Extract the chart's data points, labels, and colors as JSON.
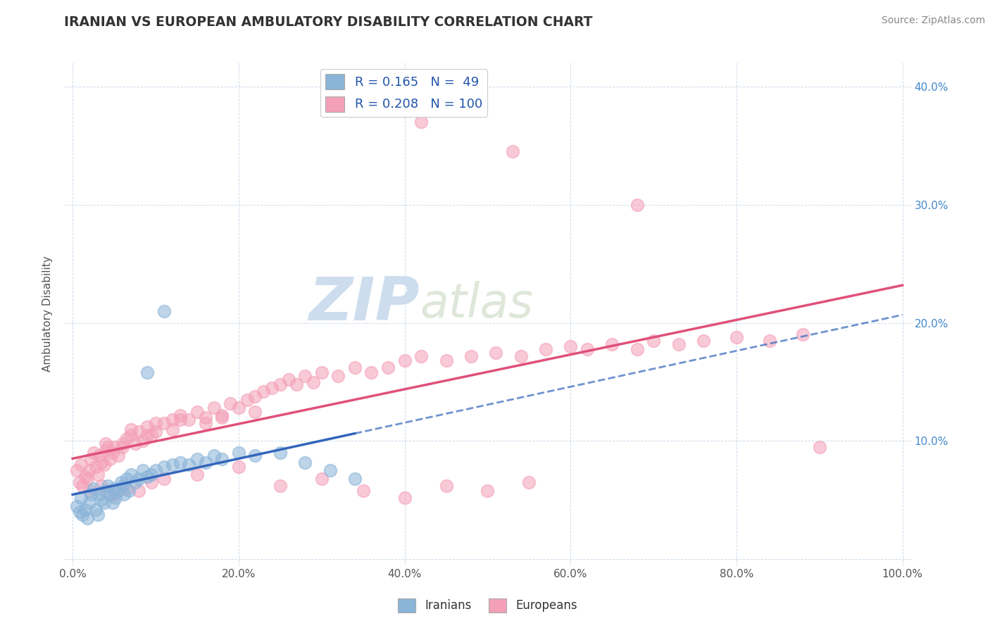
{
  "title": "IRANIAN VS EUROPEAN AMBULATORY DISABILITY CORRELATION CHART",
  "source": "Source: ZipAtlas.com",
  "ylabel": "Ambulatory Disability",
  "watermark_zip": "ZIP",
  "watermark_atlas": "atlas",
  "legend_iranian": {
    "R": 0.165,
    "N": 49
  },
  "legend_european": {
    "R": 0.208,
    "N": 100
  },
  "xlim": [
    -0.01,
    1.01
  ],
  "ylim": [
    -0.005,
    0.42
  ],
  "xticks": [
    0.0,
    0.2,
    0.4,
    0.6,
    0.8,
    1.0
  ],
  "yticks": [
    0.0,
    0.1,
    0.2,
    0.3,
    0.4
  ],
  "xticklabels": [
    "0.0%",
    "20.0%",
    "40.0%",
    "60.0%",
    "80.0%",
    "100.0%"
  ],
  "yticklabels_right": [
    "",
    "10.0%",
    "20.0%",
    "30.0%",
    "40.0%"
  ],
  "iranian_color": "#8ab4d8",
  "european_color": "#f4a0b8",
  "iranian_line_color": "#3366bb",
  "european_line_color": "#e0507a",
  "background_color": "#ffffff",
  "grid_color": "#c8d8e8",
  "iranians_x": [
    0.005,
    0.008,
    0.01,
    0.012,
    0.015,
    0.018,
    0.02,
    0.022,
    0.025,
    0.028,
    0.03,
    0.032,
    0.035,
    0.038,
    0.04,
    0.042,
    0.045,
    0.048,
    0.05,
    0.052,
    0.055,
    0.058,
    0.06,
    0.062,
    0.065,
    0.068,
    0.07,
    0.075,
    0.08,
    0.085,
    0.09,
    0.095,
    0.1,
    0.11,
    0.12,
    0.13,
    0.14,
    0.15,
    0.16,
    0.17,
    0.18,
    0.2,
    0.22,
    0.25,
    0.28,
    0.31,
    0.34,
    0.11,
    0.09
  ],
  "iranians_y": [
    0.045,
    0.04,
    0.052,
    0.038,
    0.042,
    0.035,
    0.048,
    0.055,
    0.06,
    0.042,
    0.038,
    0.055,
    0.05,
    0.048,
    0.058,
    0.062,
    0.055,
    0.048,
    0.06,
    0.052,
    0.058,
    0.065,
    0.062,
    0.055,
    0.068,
    0.058,
    0.072,
    0.065,
    0.068,
    0.075,
    0.07,
    0.072,
    0.075,
    0.078,
    0.08,
    0.082,
    0.08,
    0.085,
    0.082,
    0.088,
    0.085,
    0.09,
    0.088,
    0.09,
    0.082,
    0.075,
    0.068,
    0.21,
    0.158
  ],
  "europeans_x": [
    0.005,
    0.008,
    0.01,
    0.012,
    0.015,
    0.018,
    0.02,
    0.022,
    0.025,
    0.028,
    0.03,
    0.032,
    0.035,
    0.038,
    0.04,
    0.042,
    0.045,
    0.048,
    0.05,
    0.055,
    0.06,
    0.065,
    0.07,
    0.075,
    0.08,
    0.085,
    0.09,
    0.095,
    0.1,
    0.11,
    0.12,
    0.13,
    0.14,
    0.15,
    0.16,
    0.17,
    0.18,
    0.19,
    0.2,
    0.21,
    0.22,
    0.23,
    0.24,
    0.25,
    0.26,
    0.27,
    0.28,
    0.29,
    0.3,
    0.32,
    0.34,
    0.36,
    0.38,
    0.4,
    0.42,
    0.45,
    0.48,
    0.51,
    0.54,
    0.57,
    0.6,
    0.62,
    0.65,
    0.68,
    0.7,
    0.73,
    0.76,
    0.8,
    0.84,
    0.88,
    0.42,
    0.53,
    0.68,
    0.02,
    0.035,
    0.05,
    0.065,
    0.08,
    0.095,
    0.11,
    0.15,
    0.2,
    0.25,
    0.3,
    0.35,
    0.4,
    0.45,
    0.5,
    0.55,
    0.9,
    0.04,
    0.06,
    0.07,
    0.09,
    0.1,
    0.12,
    0.13,
    0.16,
    0.18,
    0.22
  ],
  "europeans_y": [
    0.075,
    0.065,
    0.08,
    0.062,
    0.07,
    0.068,
    0.075,
    0.085,
    0.09,
    0.078,
    0.072,
    0.088,
    0.082,
    0.08,
    0.092,
    0.095,
    0.085,
    0.09,
    0.095,
    0.088,
    0.098,
    0.102,
    0.105,
    0.098,
    0.108,
    0.1,
    0.112,
    0.105,
    0.108,
    0.115,
    0.118,
    0.122,
    0.118,
    0.125,
    0.12,
    0.128,
    0.122,
    0.132,
    0.128,
    0.135,
    0.138,
    0.142,
    0.145,
    0.148,
    0.152,
    0.148,
    0.155,
    0.15,
    0.158,
    0.155,
    0.162,
    0.158,
    0.162,
    0.168,
    0.172,
    0.168,
    0.172,
    0.175,
    0.172,
    0.178,
    0.18,
    0.178,
    0.182,
    0.178,
    0.185,
    0.182,
    0.185,
    0.188,
    0.185,
    0.19,
    0.37,
    0.345,
    0.3,
    0.058,
    0.062,
    0.055,
    0.06,
    0.058,
    0.065,
    0.068,
    0.072,
    0.078,
    0.062,
    0.068,
    0.058,
    0.052,
    0.062,
    0.058,
    0.065,
    0.095,
    0.098,
    0.095,
    0.11,
    0.105,
    0.115,
    0.11,
    0.118,
    0.115,
    0.12,
    0.125
  ]
}
